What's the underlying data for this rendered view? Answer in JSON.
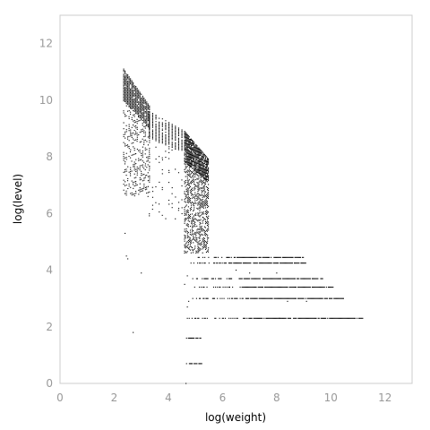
{
  "chart_data": {
    "type": "scatter",
    "title": "",
    "xlabel": "log(weight)",
    "ylabel": "log(level)",
    "xlim": [
      0,
      13
    ],
    "ylim": [
      0,
      13
    ],
    "xticks": [
      0,
      2,
      4,
      6,
      8,
      10,
      12
    ],
    "yticks": [
      0,
      2,
      4,
      6,
      8,
      10,
      12
    ],
    "grid": false,
    "legend": "none",
    "marker_color": "#000000",
    "axis_color": "#cccccc",
    "tick_label_color": "#999999",
    "point_groups": [
      {
        "description": "columns at low weight",
        "x_range": [
          2.35,
          3.3
        ],
        "x_step": 0.05,
        "y_top_start": 11.1,
        "y_top_end": 9.8,
        "y_bottom": 6.6,
        "density": 0.35
      },
      {
        "description": "dense band",
        "x_range": [
          4.6,
          5.5
        ],
        "x_step": 0.035,
        "y_top_start": 8.9,
        "y_top_end": 7.9,
        "y_bottom": 4.6,
        "density": 0.55
      },
      {
        "description": "scattered low-weight tail",
        "x_range": [
          3.3,
          4.6
        ],
        "x_step": 0.12,
        "y_top_start": 9.6,
        "y_top_end": 8.9,
        "y_bottom": 5.8,
        "density": 0.12
      }
    ],
    "horizontal_bands": [
      {
        "y": 4.45,
        "x_start": 5.1,
        "x_end": 9.0
      },
      {
        "y": 4.25,
        "x_start": 4.8,
        "x_end": 9.1
      },
      {
        "y": 3.7,
        "x_start": 4.9,
        "x_end": 9.7
      },
      {
        "y": 3.4,
        "x_start": 4.9,
        "x_end": 10.1
      },
      {
        "y": 3.0,
        "x_start": 4.9,
        "x_end": 10.5
      },
      {
        "y": 2.3,
        "x_start": 4.7,
        "x_end": 11.2
      },
      {
        "y": 1.6,
        "x_start": 4.6,
        "x_end": 5.2
      },
      {
        "y": 0.7,
        "x_start": 4.6,
        "x_end": 5.3
      }
    ],
    "isolated_points": [
      [
        2.4,
        5.3
      ],
      [
        2.5,
        4.4
      ],
      [
        2.7,
        1.8
      ],
      [
        3.0,
        3.9
      ],
      [
        2.45,
        4.5
      ],
      [
        4.7,
        2.7
      ],
      [
        4.75,
        2.9
      ],
      [
        4.6,
        3.5
      ],
      [
        4.7,
        3.8
      ],
      [
        4.65,
        0.0
      ],
      [
        6.5,
        4.0
      ],
      [
        7.0,
        3.9
      ],
      [
        8.0,
        3.9
      ],
      [
        8.4,
        2.9
      ],
      [
        9.1,
        2.9
      ],
      [
        8.1,
        2.3
      ]
    ]
  }
}
